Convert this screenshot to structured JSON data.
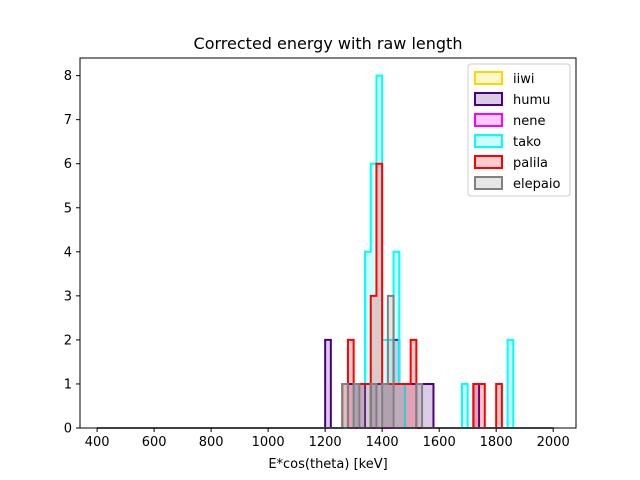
{
  "chart_data": {
    "type": "bar",
    "title": "Corrected energy with raw length",
    "xlabel": "E*cos(theta) [keV]",
    "ylabel": "",
    "xlim": [
      340,
      2080
    ],
    "ylim": [
      0,
      8.4
    ],
    "xticks": [
      400,
      600,
      800,
      1000,
      1200,
      1400,
      1600,
      1800,
      2000
    ],
    "yticks": [
      0,
      1,
      2,
      3,
      4,
      5,
      6,
      7,
      8
    ],
    "bin_start": 400,
    "bin_width": 20,
    "hist_range": [
      400,
      2000
    ],
    "legend_position": "top-right",
    "grid": false,
    "series": [
      {
        "name": "iiwi",
        "color": "#FFD700",
        "bins": []
      },
      {
        "name": "humu",
        "color": "#4B0082",
        "bins": [
          {
            "x": 1200,
            "y": 2
          },
          {
            "x": 1280,
            "y": 1
          },
          {
            "x": 1300,
            "y": 1
          },
          {
            "x": 1320,
            "y": 1
          },
          {
            "x": 1360,
            "y": 1
          },
          {
            "x": 1380,
            "y": 1
          },
          {
            "x": 1400,
            "y": 1
          },
          {
            "x": 1420,
            "y": 1
          },
          {
            "x": 1440,
            "y": 2
          },
          {
            "x": 1460,
            "y": 1
          },
          {
            "x": 1480,
            "y": 1
          },
          {
            "x": 1500,
            "y": 1
          },
          {
            "x": 1520,
            "y": 1
          },
          {
            "x": 1540,
            "y": 1
          },
          {
            "x": 1560,
            "y": 1
          },
          {
            "x": 1720,
            "y": 1
          }
        ]
      },
      {
        "name": "nene",
        "color": "#FF00FF",
        "bins": []
      },
      {
        "name": "tako",
        "color": "#00FFFF",
        "bins": [
          {
            "x": 1300,
            "y": 1
          },
          {
            "x": 1320,
            "y": 1
          },
          {
            "x": 1340,
            "y": 4
          },
          {
            "x": 1360,
            "y": 6
          },
          {
            "x": 1380,
            "y": 8
          },
          {
            "x": 1400,
            "y": 2
          },
          {
            "x": 1420,
            "y": 2
          },
          {
            "x": 1440,
            "y": 4
          },
          {
            "x": 1460,
            "y": 1
          },
          {
            "x": 1680,
            "y": 1
          },
          {
            "x": 1840,
            "y": 2
          }
        ]
      },
      {
        "name": "palila",
        "color": "#FF0000",
        "bins": [
          {
            "x": 1260,
            "y": 1
          },
          {
            "x": 1280,
            "y": 2
          },
          {
            "x": 1300,
            "y": 1
          },
          {
            "x": 1320,
            "y": 1
          },
          {
            "x": 1340,
            "y": 1
          },
          {
            "x": 1360,
            "y": 3
          },
          {
            "x": 1380,
            "y": 6
          },
          {
            "x": 1400,
            "y": 1
          },
          {
            "x": 1420,
            "y": 1
          },
          {
            "x": 1440,
            "y": 1
          },
          {
            "x": 1460,
            "y": 1
          },
          {
            "x": 1480,
            "y": 1
          },
          {
            "x": 1500,
            "y": 2
          },
          {
            "x": 1720,
            "y": 1
          },
          {
            "x": 1740,
            "y": 1
          },
          {
            "x": 1800,
            "y": 1
          }
        ]
      },
      {
        "name": "elepaio",
        "color": "#808080",
        "bins": [
          {
            "x": 1260,
            "y": 1
          },
          {
            "x": 1300,
            "y": 1
          },
          {
            "x": 1360,
            "y": 1
          },
          {
            "x": 1400,
            "y": 1
          },
          {
            "x": 1420,
            "y": 3
          },
          {
            "x": 1520,
            "y": 1
          }
        ]
      }
    ]
  }
}
